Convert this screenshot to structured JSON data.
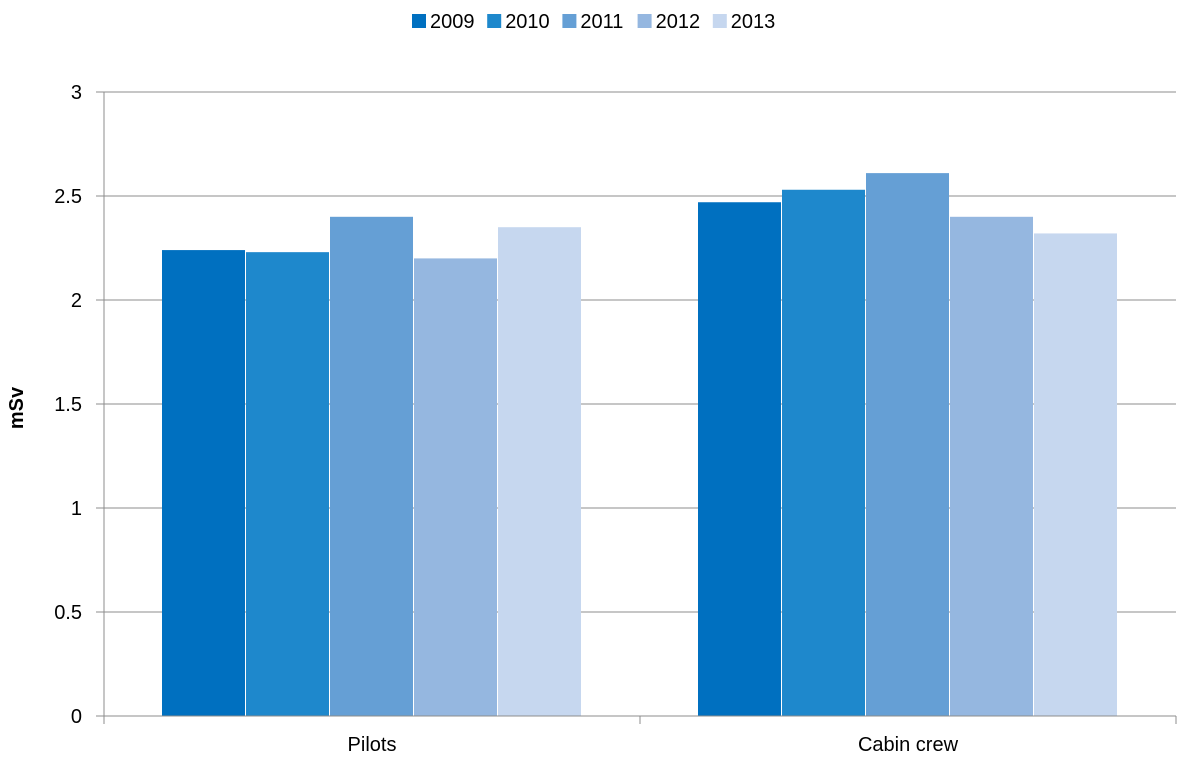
{
  "chart_data": {
    "type": "bar",
    "title": "",
    "xlabel": "",
    "ylabel": "mSv",
    "categories": [
      "Pilots",
      "Cabin crew"
    ],
    "series": [
      {
        "name": "2009",
        "color": "#0070c0",
        "values": [
          2.24,
          2.47
        ]
      },
      {
        "name": "2010",
        "color": "#1e88cc",
        "values": [
          2.23,
          2.53
        ]
      },
      {
        "name": "2011",
        "color": "#659fd5",
        "values": [
          2.4,
          2.61
        ]
      },
      {
        "name": "2012",
        "color": "#95b7e0",
        "values": [
          2.2,
          2.4
        ]
      },
      {
        "name": "2013",
        "color": "#c6d7ef",
        "values": [
          2.35,
          2.32
        ]
      }
    ],
    "ylim": [
      0,
      3
    ],
    "yticks": [
      "0",
      "0.5",
      "1",
      "1.5",
      "2",
      "2.5",
      "3"
    ],
    "grid": true,
    "legend_position": "top-center"
  }
}
